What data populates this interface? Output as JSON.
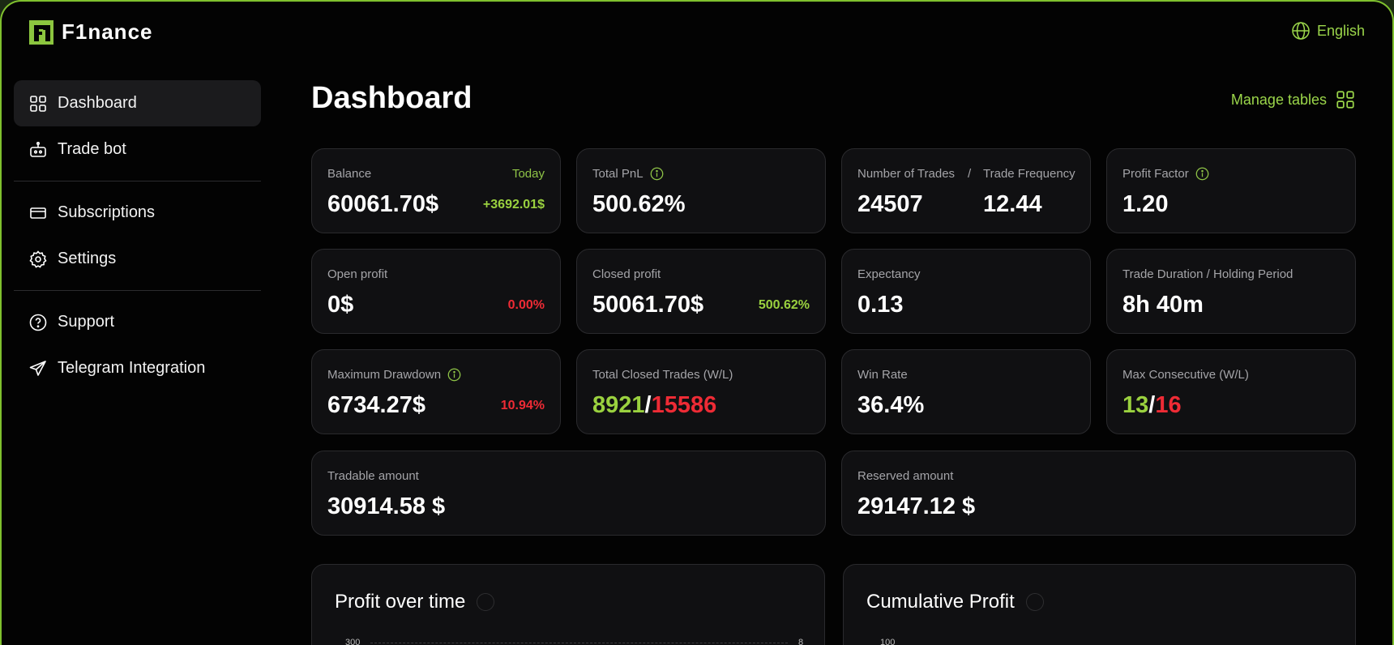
{
  "app": {
    "name": "F1nance"
  },
  "language": {
    "label": "English"
  },
  "sidebar": {
    "items": [
      {
        "label": "Dashboard",
        "icon": "grid-icon",
        "active": true
      },
      {
        "label": "Trade bot",
        "icon": "robot-icon"
      },
      {
        "label": "Subscriptions",
        "icon": "card-icon"
      },
      {
        "label": "Settings",
        "icon": "gear-icon"
      },
      {
        "label": "Support",
        "icon": "help-circle-icon"
      },
      {
        "label": "Telegram Integration",
        "icon": "send-icon"
      }
    ]
  },
  "main": {
    "title": "Dashboard",
    "manage_tables": "Manage tables"
  },
  "cards": {
    "balance": {
      "label": "Balance",
      "period": "Today",
      "value": "60061.70$",
      "change": "+3692.01$"
    },
    "total_pnl": {
      "label": "Total PnL",
      "value": "500.62%"
    },
    "trades": {
      "label": "Number of Trades",
      "sep": "/",
      "label2": "Trade Frequency",
      "value": "24507",
      "value2": "12.44"
    },
    "profit_factor": {
      "label": "Profit Factor",
      "value": "1.20"
    },
    "open_profit": {
      "label": "Open profit",
      "value": "0$",
      "change": "0.00%"
    },
    "closed_profit": {
      "label": "Closed profit",
      "value": "50061.70$",
      "change": "500.62%"
    },
    "expectancy": {
      "label": "Expectancy",
      "value": "0.13"
    },
    "trade_duration": {
      "label": "Trade Duration / Holding Period",
      "value": "8h 40m"
    },
    "max_drawdown": {
      "label": "Maximum Drawdown",
      "value": "6734.27$",
      "change": "10.94%"
    },
    "closed_trades": {
      "label": "Total Closed Trades (W/L)",
      "wins": "8921",
      "sep": "/",
      "losses": "15586"
    },
    "win_rate": {
      "label": "Win Rate",
      "value": "36.4%"
    },
    "max_consecutive": {
      "label": "Max Consecutive (W/L)",
      "wins": "13",
      "sep": "/",
      "losses": "16"
    },
    "tradable": {
      "label": "Tradable amount",
      "value": "30914.58 $"
    },
    "reserved": {
      "label": "Reserved amount",
      "value": "29147.12 $"
    }
  },
  "charts": {
    "profit": {
      "title": "Profit over time",
      "y_tick_left": "300",
      "y_tick_right": "8"
    },
    "cumulative": {
      "title": "Cumulative Profit",
      "y_tick_left": "100"
    }
  },
  "colors": {
    "accent": "#9ad13f",
    "negative": "#ee2b35",
    "background": "#030303",
    "card": "#101012"
  }
}
